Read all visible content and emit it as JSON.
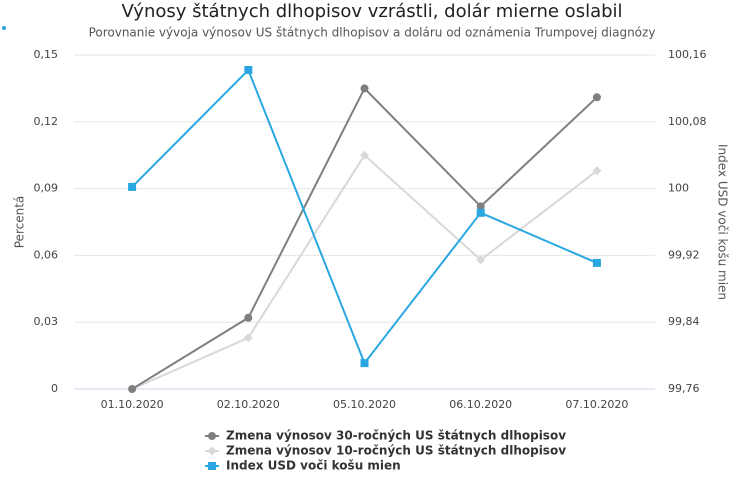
{
  "chart_data": {
    "type": "line",
    "title": "Výnosy štátnych dlhopisov vzrástli, dolár mierne oslabil",
    "subtitle": "Porovnanie vývoja výnosov US štátnych dlhopisov a doláru od oznámenia Trumpovej diagnózy",
    "y_label": "Percentá",
    "y2_label": "Index USD voči košu mien",
    "categories": [
      "01.10.2020",
      "02.10.2020",
      "05.10.2020",
      "06.10.2020",
      "07.10.2020"
    ],
    "ylim": [
      0,
      0.15
    ],
    "yticks": [
      0,
      {
        "value": 0.03,
        "label": "0,03"
      },
      {
        "value": 0.06,
        "label": "0,06"
      },
      {
        "value": 0.09,
        "label": "0,09"
      },
      {
        "value": 0.12,
        "label": "0,12"
      },
      {
        "value": 0.15,
        "label": "0,15"
      }
    ],
    "y2lim": [
      99.76,
      100.16
    ],
    "y2ticks": [
      {
        "value": 99.76,
        "label": "99,76"
      },
      {
        "value": 99.84,
        "label": "99,84"
      },
      {
        "value": 99.92,
        "label": "99,92"
      },
      100,
      {
        "value": 100.08,
        "label": "100,08"
      },
      {
        "value": 100.16,
        "label": "100,16"
      }
    ],
    "grid": true,
    "series": [
      {
        "name": "Zmena výnosov 30-ročných US štátnych dlhopisov",
        "color": "#7f7f80",
        "marker": "circle",
        "values": [
          0,
          0.032,
          0.135,
          0.082,
          0.131
        ]
      },
      {
        "name": "Zmena výnosov 10-ročných US štátnych dlhopisov",
        "color": "#d8d8d8",
        "marker": "diamond",
        "values": [
          0,
          0.023,
          0.105,
          0.058,
          0.098
        ]
      },
      {
        "name": "Index USD voči košu mien",
        "color": "#2aa7e1",
        "marker": "square",
        "axis": "y2",
        "values": [
          100.002,
          100.142,
          99.791,
          99.971,
          99.911
        ]
      }
    ]
  }
}
